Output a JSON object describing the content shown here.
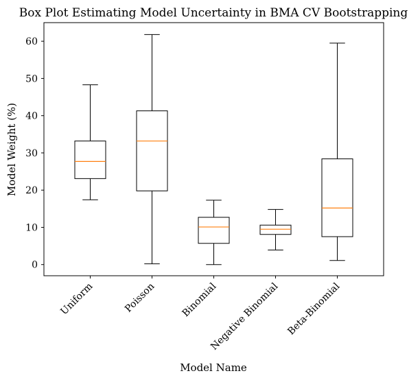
{
  "chart_data": {
    "type": "box",
    "title": "Box Plot Estimating Model Uncertainty in BMA CV Bootstrapping",
    "xlabel": "Model Name",
    "ylabel": "Model Weight (%)",
    "ylim": [
      -3,
      65
    ],
    "yticks": [
      0,
      10,
      20,
      30,
      40,
      50,
      60
    ],
    "ytick_labels": [
      "0",
      "10",
      "20",
      "30",
      "40",
      "50",
      "60"
    ],
    "categories": [
      "Uniform",
      "Poisson",
      "Binomial",
      "Negative Binomial",
      "Beta-Binomial"
    ],
    "boxes": [
      {
        "whisker_low": 17.4,
        "q1": 23.1,
        "median": 27.7,
        "q3": 33.2,
        "whisker_high": 48.3
      },
      {
        "whisker_low": 0.2,
        "q1": 19.8,
        "median": 33.2,
        "q3": 41.3,
        "whisker_high": 61.8
      },
      {
        "whisker_low": 0.0,
        "q1": 5.7,
        "median": 10.1,
        "q3": 12.7,
        "whisker_high": 17.3
      },
      {
        "whisker_low": 3.9,
        "q1": 8.1,
        "median": 9.5,
        "q3": 10.6,
        "whisker_high": 14.8
      },
      {
        "whisker_low": 1.1,
        "q1": 7.5,
        "median": 15.2,
        "q3": 28.4,
        "whisker_high": 59.5
      }
    ],
    "grid": false,
    "legend": "none",
    "colors": {
      "box": "#000000",
      "median": "#ff7f0e",
      "axes": "#000000"
    }
  }
}
